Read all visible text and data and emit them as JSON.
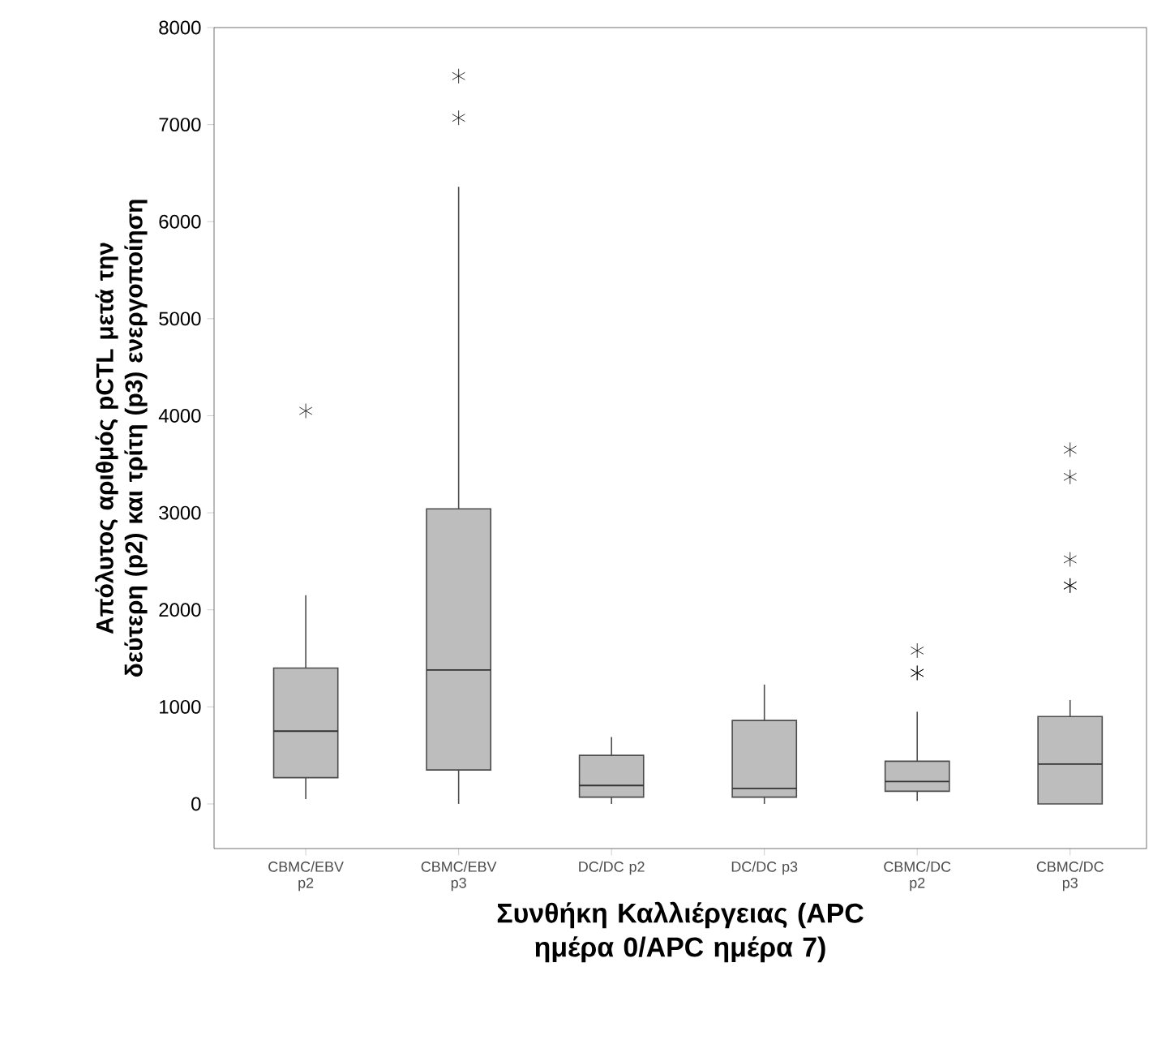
{
  "chart_data": {
    "type": "box",
    "xlabel": "Συνθήκη Καλλιέργειας (APC ημέρα 0/APC ημέρα 7)",
    "ylabel": "Απόλυτος αριθμός pCTL μετά την δεύτερη (p2) και τρίτη (p3) ενεργοποίηση",
    "categories": [
      "CBMC/EBV p2",
      "CBMC/EBV p3",
      "DC/DC p2",
      "DC/DC p3",
      "CBMC/DC p2",
      "CBMC/DC p3"
    ],
    "boxes": [
      {
        "low": 50,
        "q1": 270,
        "median": 750,
        "q3": 1400,
        "high": 2150,
        "outliers": [
          4050
        ]
      },
      {
        "low": 0,
        "q1": 350,
        "median": 1380,
        "q3": 3040,
        "high": 6360,
        "outliers": [
          7070,
          7500
        ]
      },
      {
        "low": 0,
        "q1": 70,
        "median": 190,
        "q3": 500,
        "high": 690
      },
      {
        "low": 0,
        "q1": 70,
        "median": 160,
        "q3": 860,
        "high": 1230
      },
      {
        "low": 30,
        "q1": 130,
        "median": 230,
        "q3": 440,
        "high": 950,
        "outliers": [
          1350,
          1350,
          1580
        ]
      },
      {
        "low": 0,
        "q1": 0,
        "median": 410,
        "q3": 900,
        "high": 1070,
        "outliers": [
          2250,
          2250,
          2520,
          3370,
          3650
        ]
      }
    ],
    "color": "#bdbdbd",
    "marker": "star",
    "ylim": [
      -460,
      8000
    ],
    "yticks": [
      0,
      1000,
      2000,
      3000,
      4000,
      5000,
      6000,
      7000,
      8000
    ]
  }
}
